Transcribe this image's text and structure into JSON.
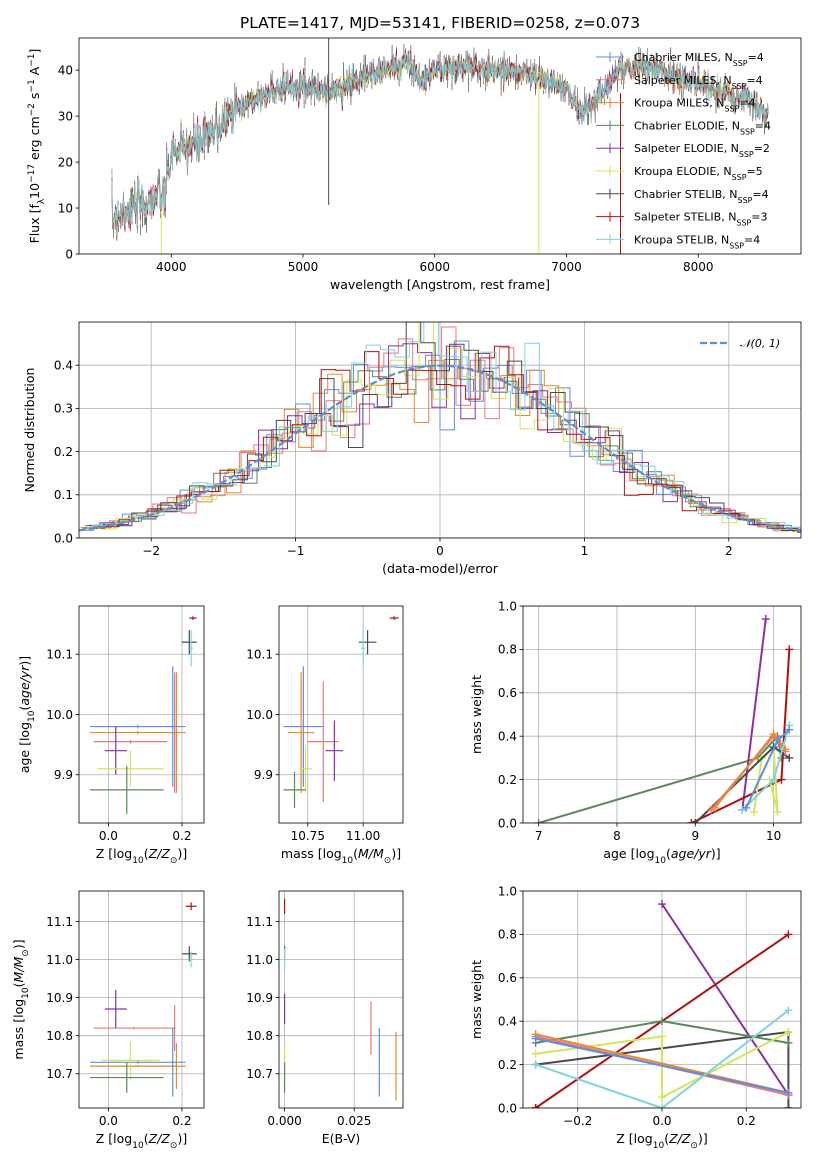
{
  "title": "PLATE=1417, MJD=53141, FIBERID=0258, z=0.073",
  "colors": {
    "Chabrier MILES": "#5b8ee6",
    "Salpeter MILES": "#e77b7b",
    "Kroupa MILES": "#e8892e",
    "Chabrier ELODIE": "#5a8a5a",
    "Salpeter ELODIE": "#8e2ea6",
    "Kroupa ELODIE": "#d2e65a",
    "Chabrier STELIB": "#4a4a4a",
    "Salpeter STELIB": "#b01010",
    "Kroupa STELIB": "#7fd3dc",
    "gauss": "#5b8ed6"
  },
  "chart_data": [
    {
      "id": "spectrum",
      "type": "line",
      "xlabel": "wavelength [Angstrom, rest frame]",
      "ylabel": "Flux [f_λ 10^-17 erg cm^-2 s^-1 A^-1]",
      "xlim": [
        3300,
        8780
      ],
      "ylim": [
        0,
        47
      ],
      "xticks": [
        4000,
        5000,
        6000,
        7000,
        8000
      ],
      "yticks": [
        0,
        10,
        20,
        30,
        40
      ],
      "grid": false,
      "legend_position": "right",
      "series": [
        {
          "name": "Chabrier MILES, N_SSP=4"
        },
        {
          "name": "Salpeter MILES, N_SSP=4"
        },
        {
          "name": "Kroupa MILES, N_SSP=4"
        },
        {
          "name": "Chabrier ELODIE, N_SSP=4"
        },
        {
          "name": "Salpeter ELODIE, N_SSP=2"
        },
        {
          "name": "Kroupa ELODIE, N_SSP=5"
        },
        {
          "name": "Chabrier STELIB, N_SSP=4"
        },
        {
          "name": "Salpeter STELIB, N_SSP=3"
        },
        {
          "name": "Kroupa STELIB, N_SSP=4"
        }
      ],
      "continuum": {
        "x": [
          3550,
          3700,
          3800,
          3900,
          3950,
          4000,
          4100,
          4200,
          4300,
          4400,
          4500,
          4600,
          4800,
          5000,
          5200,
          5400,
          5600,
          5800,
          5900,
          6000,
          6200,
          6400,
          6600,
          6800,
          7000,
          7100,
          7200,
          7400,
          7600,
          7800,
          8000,
          8200,
          8400,
          8530
        ],
        "y": [
          8,
          10,
          11,
          13,
          12,
          22,
          23,
          24,
          26,
          29,
          32,
          33,
          36,
          37,
          35,
          38,
          40,
          42,
          37,
          40,
          41,
          40,
          40,
          38,
          36,
          31,
          33,
          40,
          41,
          39,
          37,
          35,
          33,
          30
        ]
      }
    },
    {
      "id": "residual-histogram",
      "type": "histogram",
      "xlabel": "(data-model)/error",
      "ylabel": "Normed distribution",
      "xlim": [
        -2.5,
        2.5
      ],
      "ylim": [
        0,
        0.5
      ],
      "xticks": [
        -2,
        -1,
        0,
        1,
        2
      ],
      "yticks": [
        0.0,
        0.1,
        0.2,
        0.3,
        0.4
      ],
      "grid": true,
      "legend": "𝒩(0, 1)",
      "legend_position": "top-right",
      "bin_width": 0.1
    },
    {
      "id": "age-vs-Z",
      "type": "scatter-errorbar",
      "xlabel": "Z [log10(Z/Z⊙)]",
      "ylabel": "age [log10(age/yr)]",
      "xlim": [
        -0.08,
        0.26
      ],
      "ylim": [
        9.82,
        10.18
      ],
      "xticks": [
        0.0,
        0.2
      ],
      "yticks": [
        9.9,
        10.0,
        10.1
      ],
      "grid": true,
      "points": [
        {
          "model": "Chabrier MILES",
          "x": 0.08,
          "y": 9.98,
          "xerr": 0.13,
          "yerr": 0.003
        },
        {
          "model": "Kroupa MILES",
          "x": 0.08,
          "y": 9.97,
          "xerr": 0.13,
          "yerr": 0.003
        },
        {
          "model": "Salpeter MILES",
          "x": 0.06,
          "y": 9.955,
          "xerr": 0.1,
          "yerr": 0.003
        },
        {
          "model": "Salpeter ELODIE",
          "x": 0.02,
          "y": 9.94,
          "xerr": 0.03,
          "yerr": 0.04
        },
        {
          "model": "Kroupa ELODIE",
          "x": 0.06,
          "y": 9.91,
          "xerr": 0.09,
          "yerr": 0.03
        },
        {
          "model": "Chabrier ELODIE",
          "x": 0.05,
          "y": 9.875,
          "xerr": 0.1,
          "yerr": 0.04
        },
        {
          "model": "Chabrier MILES",
          "x": 0.175,
          "y": 9.98,
          "xerr": 0.003,
          "yerr": 0.1
        },
        {
          "model": "Salpeter MILES",
          "x": 0.18,
          "y": 9.97,
          "xerr": 0.003,
          "yerr": 0.1
        },
        {
          "model": "Kroupa MILES",
          "x": 0.185,
          "y": 9.97,
          "xerr": 0.003,
          "yerr": 0.1
        },
        {
          "model": "Salpeter STELIB",
          "x": 0.23,
          "y": 10.16,
          "xerr": 0.01,
          "yerr": 0.003
        },
        {
          "model": "Chabrier STELIB",
          "x": 0.22,
          "y": 10.12,
          "xerr": 0.02,
          "yerr": 0.02
        },
        {
          "model": "Kroupa STELIB",
          "x": 0.225,
          "y": 10.11,
          "xerr": 0.005,
          "yerr": 0.03
        }
      ]
    },
    {
      "id": "age-vs-mass",
      "type": "scatter-errorbar",
      "xlabel": "mass [log10(M/M⊙)]",
      "ylabel": "",
      "xlim": [
        10.62,
        11.18
      ],
      "ylim": [
        9.82,
        10.18
      ],
      "xticks": [
        10.75,
        11.0
      ],
      "yticks": [
        9.9,
        10.0,
        10.1
      ],
      "grid": true,
      "points": [
        {
          "model": "Chabrier MILES",
          "x": 10.73,
          "y": 9.98,
          "xerr": 0.09,
          "yerr": 0.1
        },
        {
          "model": "Kroupa MILES",
          "x": 10.72,
          "y": 9.97,
          "xerr": 0.06,
          "yerr": 0.1
        },
        {
          "model": "Salpeter MILES",
          "x": 10.82,
          "y": 9.955,
          "xerr": 0.07,
          "yerr": 0.1
        },
        {
          "model": "Salpeter ELODIE",
          "x": 10.87,
          "y": 9.94,
          "xerr": 0.04,
          "yerr": 0.05
        },
        {
          "model": "Kroupa ELODIE",
          "x": 10.74,
          "y": 9.91,
          "xerr": 0.03,
          "yerr": 0.04
        },
        {
          "model": "Chabrier ELODIE",
          "x": 10.69,
          "y": 9.875,
          "xerr": 0.05,
          "yerr": 0.03
        },
        {
          "model": "Salpeter STELIB",
          "x": 11.14,
          "y": 10.16,
          "xerr": 0.02,
          "yerr": 0.003
        },
        {
          "model": "Chabrier STELIB",
          "x": 11.02,
          "y": 10.12,
          "xerr": 0.04,
          "yerr": 0.02
        },
        {
          "model": "Kroupa STELIB",
          "x": 11.0,
          "y": 10.11,
          "xerr": 0.01,
          "yerr": 0.03
        }
      ]
    },
    {
      "id": "massweight-vs-age",
      "type": "line",
      "xlabel": "age [log10(age/yr)]",
      "ylabel": "mass weight",
      "xlim": [
        6.8,
        10.35
      ],
      "ylim": [
        0,
        1.0
      ],
      "xticks": [
        7,
        8,
        9,
        10
      ],
      "yticks": [
        0.0,
        0.2,
        0.4,
        0.6,
        0.8,
        1.0
      ],
      "grid": true,
      "series": [
        {
          "model": "Chabrier ELODIE",
          "x": [
            7.0,
            9.8,
            10.05,
            10.1
          ],
          "y": [
            0.0,
            0.3,
            0.4,
            0.3
          ]
        },
        {
          "model": "Salpeter ELODIE",
          "x": [
            9.6,
            9.9
          ],
          "y": [
            0.06,
            0.94
          ]
        },
        {
          "model": "Salpeter STELIB",
          "x": [
            8.95,
            10.1,
            10.2
          ],
          "y": [
            0.0,
            0.2,
            0.8
          ]
        },
        {
          "model": "Kroupa ELODIE",
          "x": [
            9.75,
            9.85,
            10.0,
            10.05,
            9.95
          ],
          "y": [
            0.05,
            0.3,
            0.35,
            0.05,
            0.2
          ]
        },
        {
          "model": "Chabrier STELIB",
          "x": [
            9.0,
            10.0,
            10.2
          ],
          "y": [
            0.0,
            0.35,
            0.3
          ]
        },
        {
          "model": "Salpeter MILES",
          "x": [
            9.2,
            10.0,
            10.15
          ],
          "y": [
            0.06,
            0.4,
            0.33
          ]
        },
        {
          "model": "Kroupa MILES",
          "x": [
            9.25,
            10.0,
            10.15
          ],
          "y": [
            0.07,
            0.41,
            0.34
          ]
        },
        {
          "model": "Kroupa STELIB",
          "x": [
            9.6,
            10.0,
            10.2
          ],
          "y": [
            0.06,
            0.2,
            0.45
          ]
        },
        {
          "model": "Chabrier MILES",
          "x": [
            9.65,
            10.05,
            10.2
          ],
          "y": [
            0.07,
            0.38,
            0.43
          ]
        }
      ]
    },
    {
      "id": "mass-vs-Z",
      "type": "scatter-errorbar",
      "xlabel": "Z [log10(Z/Z⊙)]",
      "ylabel": "mass [log10(M/M⊙)]",
      "xlim": [
        -0.08,
        0.26
      ],
      "ylim": [
        10.61,
        11.18
      ],
      "xticks": [
        0.0,
        0.2
      ],
      "yticks": [
        10.7,
        10.8,
        10.9,
        11.0,
        11.1
      ],
      "grid": true,
      "points": [
        {
          "model": "Chabrier MILES",
          "x": 0.08,
          "y": 10.73,
          "xerr": 0.13,
          "yerr": 0.003
        },
        {
          "model": "Kroupa MILES",
          "x": 0.08,
          "y": 10.72,
          "xerr": 0.13,
          "yerr": 0.003
        },
        {
          "model": "Salpeter MILES",
          "x": 0.07,
          "y": 10.82,
          "xerr": 0.11,
          "yerr": 0.003
        },
        {
          "model": "Salpeter ELODIE",
          "x": 0.02,
          "y": 10.87,
          "xerr": 0.03,
          "yerr": 0.05
        },
        {
          "model": "Kroupa ELODIE",
          "x": 0.06,
          "y": 10.735,
          "xerr": 0.08,
          "yerr": 0.05
        },
        {
          "model": "Chabrier ELODIE",
          "x": 0.05,
          "y": 10.69,
          "xerr": 0.1,
          "yerr": 0.04
        },
        {
          "model": "Chabrier MILES",
          "x": 0.175,
          "y": 10.73,
          "xerr": 0.003,
          "yerr": 0.09
        },
        {
          "model": "Salpeter MILES",
          "x": 0.18,
          "y": 10.82,
          "xerr": 0.003,
          "yerr": 0.06
        },
        {
          "model": "Kroupa MILES",
          "x": 0.185,
          "y": 10.72,
          "xerr": 0.003,
          "yerr": 0.06
        },
        {
          "model": "Salpeter STELIB",
          "x": 0.225,
          "y": 11.14,
          "xerr": 0.015,
          "yerr": 0.01
        },
        {
          "model": "Chabrier STELIB",
          "x": 0.22,
          "y": 11.015,
          "xerr": 0.02,
          "yerr": 0.02
        },
        {
          "model": "Kroupa STELIB",
          "x": 0.225,
          "y": 11.0,
          "xerr": 0.005,
          "yerr": 0.02
        }
      ]
    },
    {
      "id": "mass-vs-EBV",
      "type": "scatter-errorbar",
      "xlabel": "E(B-V)",
      "ylabel": "",
      "xlim": [
        -0.002,
        0.0425
      ],
      "ylim": [
        10.61,
        11.18
      ],
      "xticks": [
        0.0,
        0.025
      ],
      "yticks": [
        10.7,
        10.8,
        10.9,
        11.0,
        11.1
      ],
      "grid": true,
      "points": [
        {
          "model": "Salpeter STELIB",
          "x": 0.0,
          "y": 11.14,
          "xerr": 0.0,
          "yerr": 0.02
        },
        {
          "model": "Chabrier STELIB",
          "x": 0.0,
          "y": 11.015,
          "xerr": 0.0,
          "yerr": 0.02
        },
        {
          "model": "Kroupa STELIB",
          "x": 0.0,
          "y": 11.0,
          "xerr": 0.0,
          "yerr": 0.03
        },
        {
          "model": "Salpeter ELODIE",
          "x": 0.0,
          "y": 10.87,
          "xerr": 0.0,
          "yerr": 0.04
        },
        {
          "model": "Kroupa ELODIE",
          "x": 0.0,
          "y": 10.735,
          "xerr": 0.0,
          "yerr": 0.04
        },
        {
          "model": "Chabrier ELODIE",
          "x": 0.0,
          "y": 10.69,
          "xerr": 0.0,
          "yerr": 0.04
        },
        {
          "model": "Salpeter MILES",
          "x": 0.031,
          "y": 10.82,
          "xerr": 0.0,
          "yerr": 0.07
        },
        {
          "model": "Chabrier MILES",
          "x": 0.034,
          "y": 10.73,
          "xerr": 0.0,
          "yerr": 0.09
        },
        {
          "model": "Kroupa MILES",
          "x": 0.04,
          "y": 10.72,
          "xerr": 0.0,
          "yerr": 0.09
        }
      ]
    },
    {
      "id": "massweight-vs-Z",
      "type": "line",
      "xlabel": "Z [log10(Z/Z⊙)]",
      "ylabel": "mass weight",
      "xlim": [
        -0.33,
        0.33
      ],
      "ylim": [
        0,
        1.0
      ],
      "xticks": [
        -0.2,
        0.0,
        0.2
      ],
      "yticks": [
        0.0,
        0.2,
        0.4,
        0.6,
        0.8,
        1.0
      ],
      "grid": true,
      "series": [
        {
          "model": "Salpeter ELODIE",
          "x": [
            0.0,
            0.3
          ],
          "y": [
            0.94,
            0.06
          ]
        },
        {
          "model": "Salpeter STELIB",
          "x": [
            -0.3,
            -0.3,
            0.3
          ],
          "y": [
            0.0,
            0.0,
            0.8
          ]
        },
        {
          "model": "Chabrier STELIB",
          "x": [
            -0.3,
            0.3,
            0.3
          ],
          "y": [
            0.2,
            0.35,
            0.0
          ]
        },
        {
          "model": "Chabrier ELODIE",
          "x": [
            -0.3,
            0.0,
            0.3
          ],
          "y": [
            0.3,
            0.4,
            0.3
          ]
        },
        {
          "model": "Kroupa ELODIE",
          "x": [
            -0.3,
            0.0,
            0.0,
            0.3
          ],
          "y": [
            0.25,
            0.33,
            0.05,
            0.35
          ]
        },
        {
          "model": "Salpeter MILES",
          "x": [
            -0.3,
            0.3
          ],
          "y": [
            0.33,
            0.06
          ]
        },
        {
          "model": "Kroupa MILES",
          "x": [
            -0.3,
            0.3
          ],
          "y": [
            0.34,
            0.07
          ]
        },
        {
          "model": "Chabrier MILES",
          "x": [
            -0.3,
            0.3
          ],
          "y": [
            0.32,
            0.07
          ]
        },
        {
          "model": "Kroupa STELIB",
          "x": [
            -0.3,
            0.0,
            0.3
          ],
          "y": [
            0.2,
            0.0,
            0.45
          ]
        }
      ]
    }
  ]
}
